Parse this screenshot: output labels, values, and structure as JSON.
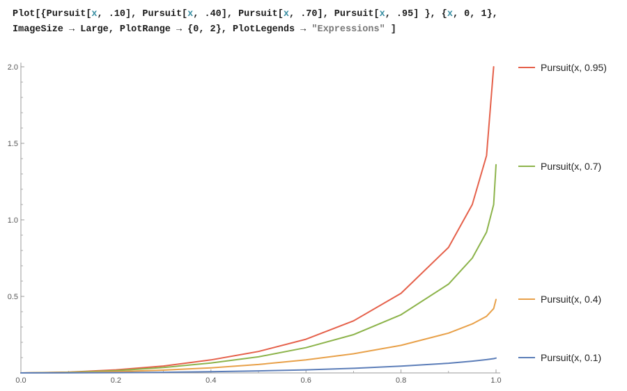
{
  "code": {
    "line1": [
      {
        "t": "Plot[{Pursuit[",
        "c": "k"
      },
      {
        "t": "x",
        "c": "var"
      },
      {
        "t": ", .10], Pursuit[",
        "c": "k"
      },
      {
        "t": "x",
        "c": "var"
      },
      {
        "t": ", .40], Pursuit[",
        "c": "k"
      },
      {
        "t": "x",
        "c": "var"
      },
      {
        "t": ", .70], Pursuit[",
        "c": "k"
      },
      {
        "t": "x",
        "c": "var"
      },
      {
        "t": ", .95] }, {",
        "c": "k"
      },
      {
        "t": "x",
        "c": "var"
      },
      {
        "t": ", 0, 1},",
        "c": "k"
      }
    ],
    "line2": [
      {
        "t": "ImageSize → Large, PlotRange → {0, 2}, PlotLegends → ",
        "c": "k"
      },
      {
        "t": "\"Expressions\"",
        "c": "str"
      },
      {
        "t": " ]",
        "c": "k"
      }
    ]
  },
  "chart_data": {
    "type": "line",
    "title": "",
    "xlabel": "",
    "ylabel": "",
    "xlim": [
      0,
      1
    ],
    "ylim": [
      0,
      2
    ],
    "x_ticks": [
      "0.0",
      "0.2",
      "0.4",
      "0.6",
      "0.8",
      "1.0"
    ],
    "y_ticks": [
      "0.5",
      "1.0",
      "1.5",
      "2.0"
    ],
    "grid": false,
    "legend_position": "right",
    "x": [
      0,
      0.1,
      0.2,
      0.3,
      0.4,
      0.5,
      0.6,
      0.7,
      0.8,
      0.9,
      0.95,
      0.98,
      0.995,
      1.0
    ],
    "series": [
      {
        "name": "Pursuit(x, 0.95)",
        "color": "#e5604a",
        "x": [
          0,
          0.1,
          0.2,
          0.3,
          0.4,
          0.5,
          0.6,
          0.7,
          0.8,
          0.9,
          0.95,
          0.98,
          0.995
        ],
        "values": [
          0,
          0.005,
          0.02,
          0.045,
          0.085,
          0.14,
          0.22,
          0.34,
          0.52,
          0.82,
          1.1,
          1.42,
          2.0
        ]
      },
      {
        "name": "Pursuit(x, 0.7)",
        "color": "#8cb34a",
        "x": [
          0,
          0.1,
          0.2,
          0.3,
          0.4,
          0.5,
          0.6,
          0.7,
          0.8,
          0.9,
          0.95,
          0.98,
          0.995,
          1.0
        ],
        "values": [
          0,
          0.004,
          0.015,
          0.035,
          0.065,
          0.105,
          0.165,
          0.25,
          0.38,
          0.58,
          0.75,
          0.92,
          1.1,
          1.36
        ]
      },
      {
        "name": "Pursuit(x, 0.4)",
        "color": "#e8a048",
        "x": [
          0,
          0.1,
          0.2,
          0.3,
          0.4,
          0.5,
          0.6,
          0.7,
          0.8,
          0.9,
          0.95,
          0.98,
          0.995,
          1.0
        ],
        "values": [
          0,
          0.002,
          0.008,
          0.018,
          0.033,
          0.055,
          0.085,
          0.125,
          0.18,
          0.26,
          0.32,
          0.37,
          0.42,
          0.48
        ]
      },
      {
        "name": "Pursuit(x, 0.1)",
        "color": "#5b7db8",
        "x": [
          0,
          0.1,
          0.2,
          0.3,
          0.4,
          0.5,
          0.6,
          0.7,
          0.8,
          0.9,
          0.95,
          0.98,
          0.995,
          1.0
        ],
        "values": [
          0,
          0.0005,
          0.002,
          0.004,
          0.008,
          0.013,
          0.02,
          0.03,
          0.044,
          0.063,
          0.077,
          0.087,
          0.093,
          0.097
        ]
      }
    ]
  }
}
